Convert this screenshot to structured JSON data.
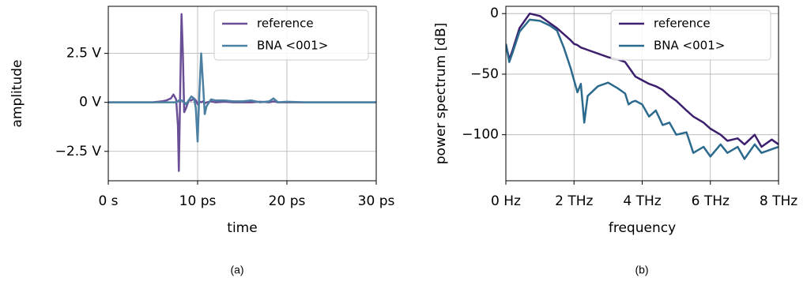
{
  "chart_data": [
    {
      "type": "line",
      "caption": "(a)",
      "x_label": "time",
      "y_label": "amplitude",
      "x": [
        0,
        2,
        4,
        5,
        6,
        6.5,
        7,
        7.3,
        7.6,
        7.8,
        7.9,
        8.05,
        8.2,
        8.35,
        8.5,
        8.7,
        9,
        9.3,
        9.6,
        9.8,
        10,
        10.2,
        10.4,
        10.6,
        10.8,
        11,
        11.5,
        12,
        13,
        14,
        15,
        16,
        17,
        18,
        18.5,
        19,
        20,
        22,
        24,
        26,
        28,
        30
      ],
      "series": [
        {
          "name": "reference",
          "color": "#6a4f97",
          "values": [
            0,
            0,
            0,
            0,
            0.05,
            0.1,
            0.2,
            0.4,
            0.15,
            -1.2,
            -3.5,
            0.5,
            4.5,
            2.5,
            -0.5,
            -0.3,
            0.1,
            0.1,
            0.2,
            0.1,
            -0.1,
            0.05,
            0,
            0.05,
            -0.05,
            0,
            0.05,
            0,
            0.03,
            0,
            0,
            0,
            0.03,
            0,
            0.05,
            0,
            0,
            0,
            0,
            0,
            0,
            0
          ]
        },
        {
          "name": "BNA <001>",
          "color": "#4b80a2",
          "values": [
            0,
            0,
            0,
            0,
            0,
            0,
            0,
            0,
            0,
            0.05,
            0.1,
            0.1,
            0.1,
            0.05,
            0,
            -0.1,
            0.1,
            0.3,
            0.2,
            -0.3,
            -2,
            0.5,
            2.5,
            1,
            -0.6,
            -0.2,
            0.15,
            0.1,
            0.1,
            0.05,
            0.05,
            0.1,
            0,
            0.05,
            0.2,
            0,
            0.03,
            0,
            0,
            0,
            0,
            0
          ]
        }
      ],
      "xlim": [
        0,
        30
      ],
      "ylim": [
        -4,
        4.9
      ],
      "xticks": [
        {
          "value": 0,
          "label": "0 s"
        },
        {
          "value": 10,
          "label": "10 ps"
        },
        {
          "value": 20,
          "label": "20 ps"
        },
        {
          "value": 30,
          "label": "30 ps"
        }
      ],
      "yticks": [
        {
          "value": -2.5,
          "label": "−2.5 V"
        },
        {
          "value": 0,
          "label": "0 V"
        },
        {
          "value": 2.5,
          "label": "2.5 V"
        }
      ],
      "grid": true,
      "legend": "upper right"
    },
    {
      "type": "line",
      "caption": "(b)",
      "x_label": "frequency",
      "y_label": "power spectrum [dB]",
      "x": [
        0,
        0.1,
        0.2,
        0.4,
        0.7,
        1,
        1.3,
        1.5,
        1.7,
        1.9,
        2,
        2.1,
        2.2,
        2.3,
        2.4,
        2.7,
        3,
        3.3,
        3.5,
        3.6,
        3.7,
        3.8,
        4,
        4.2,
        4.4,
        4.6,
        4.8,
        5,
        5.3,
        5.5,
        5.8,
        6,
        6.3,
        6.5,
        6.8,
        7,
        7.3,
        7.5,
        7.8,
        8
      ],
      "series": [
        {
          "name": "reference",
          "color": "#3d1f6e",
          "values": [
            -25,
            -38,
            -30,
            -12,
            0,
            -2,
            -8,
            -12,
            -17,
            -22,
            -25,
            -26,
            -28,
            -29,
            -30,
            -33,
            -36,
            -38,
            -40,
            -44,
            -48,
            -52,
            -55,
            -58,
            -60,
            -63,
            -68,
            -72,
            -80,
            -85,
            -90,
            -95,
            -100,
            -105,
            -103,
            -108,
            -100,
            -110,
            -104,
            -108
          ]
        },
        {
          "name": "BNA <001>",
          "color": "#2b6a8c",
          "values": [
            -25,
            -40,
            -32,
            -15,
            -5,
            -6,
            -10,
            -14,
            -28,
            -45,
            -55,
            -65,
            -58,
            -90,
            -68,
            -60,
            -57,
            -62,
            -66,
            -75,
            -73,
            -72,
            -75,
            -85,
            -80,
            -92,
            -90,
            -100,
            -98,
            -115,
            -110,
            -118,
            -108,
            -115,
            -110,
            -120,
            -108,
            -115,
            -112,
            -110
          ]
        }
      ],
      "xlim": [
        0,
        8
      ],
      "ylim": [
        -138,
        6
      ],
      "xticks": [
        {
          "value": 0,
          "label": "0 Hz"
        },
        {
          "value": 2,
          "label": "2 THz"
        },
        {
          "value": 4,
          "label": "4 THz"
        },
        {
          "value": 6,
          "label": "6 THz"
        },
        {
          "value": 8,
          "label": "8 THz"
        }
      ],
      "yticks": [
        {
          "value": -100,
          "label": "−100"
        },
        {
          "value": -50,
          "label": "−50"
        },
        0
      ],
      "grid": true,
      "legend": "upper right"
    }
  ]
}
